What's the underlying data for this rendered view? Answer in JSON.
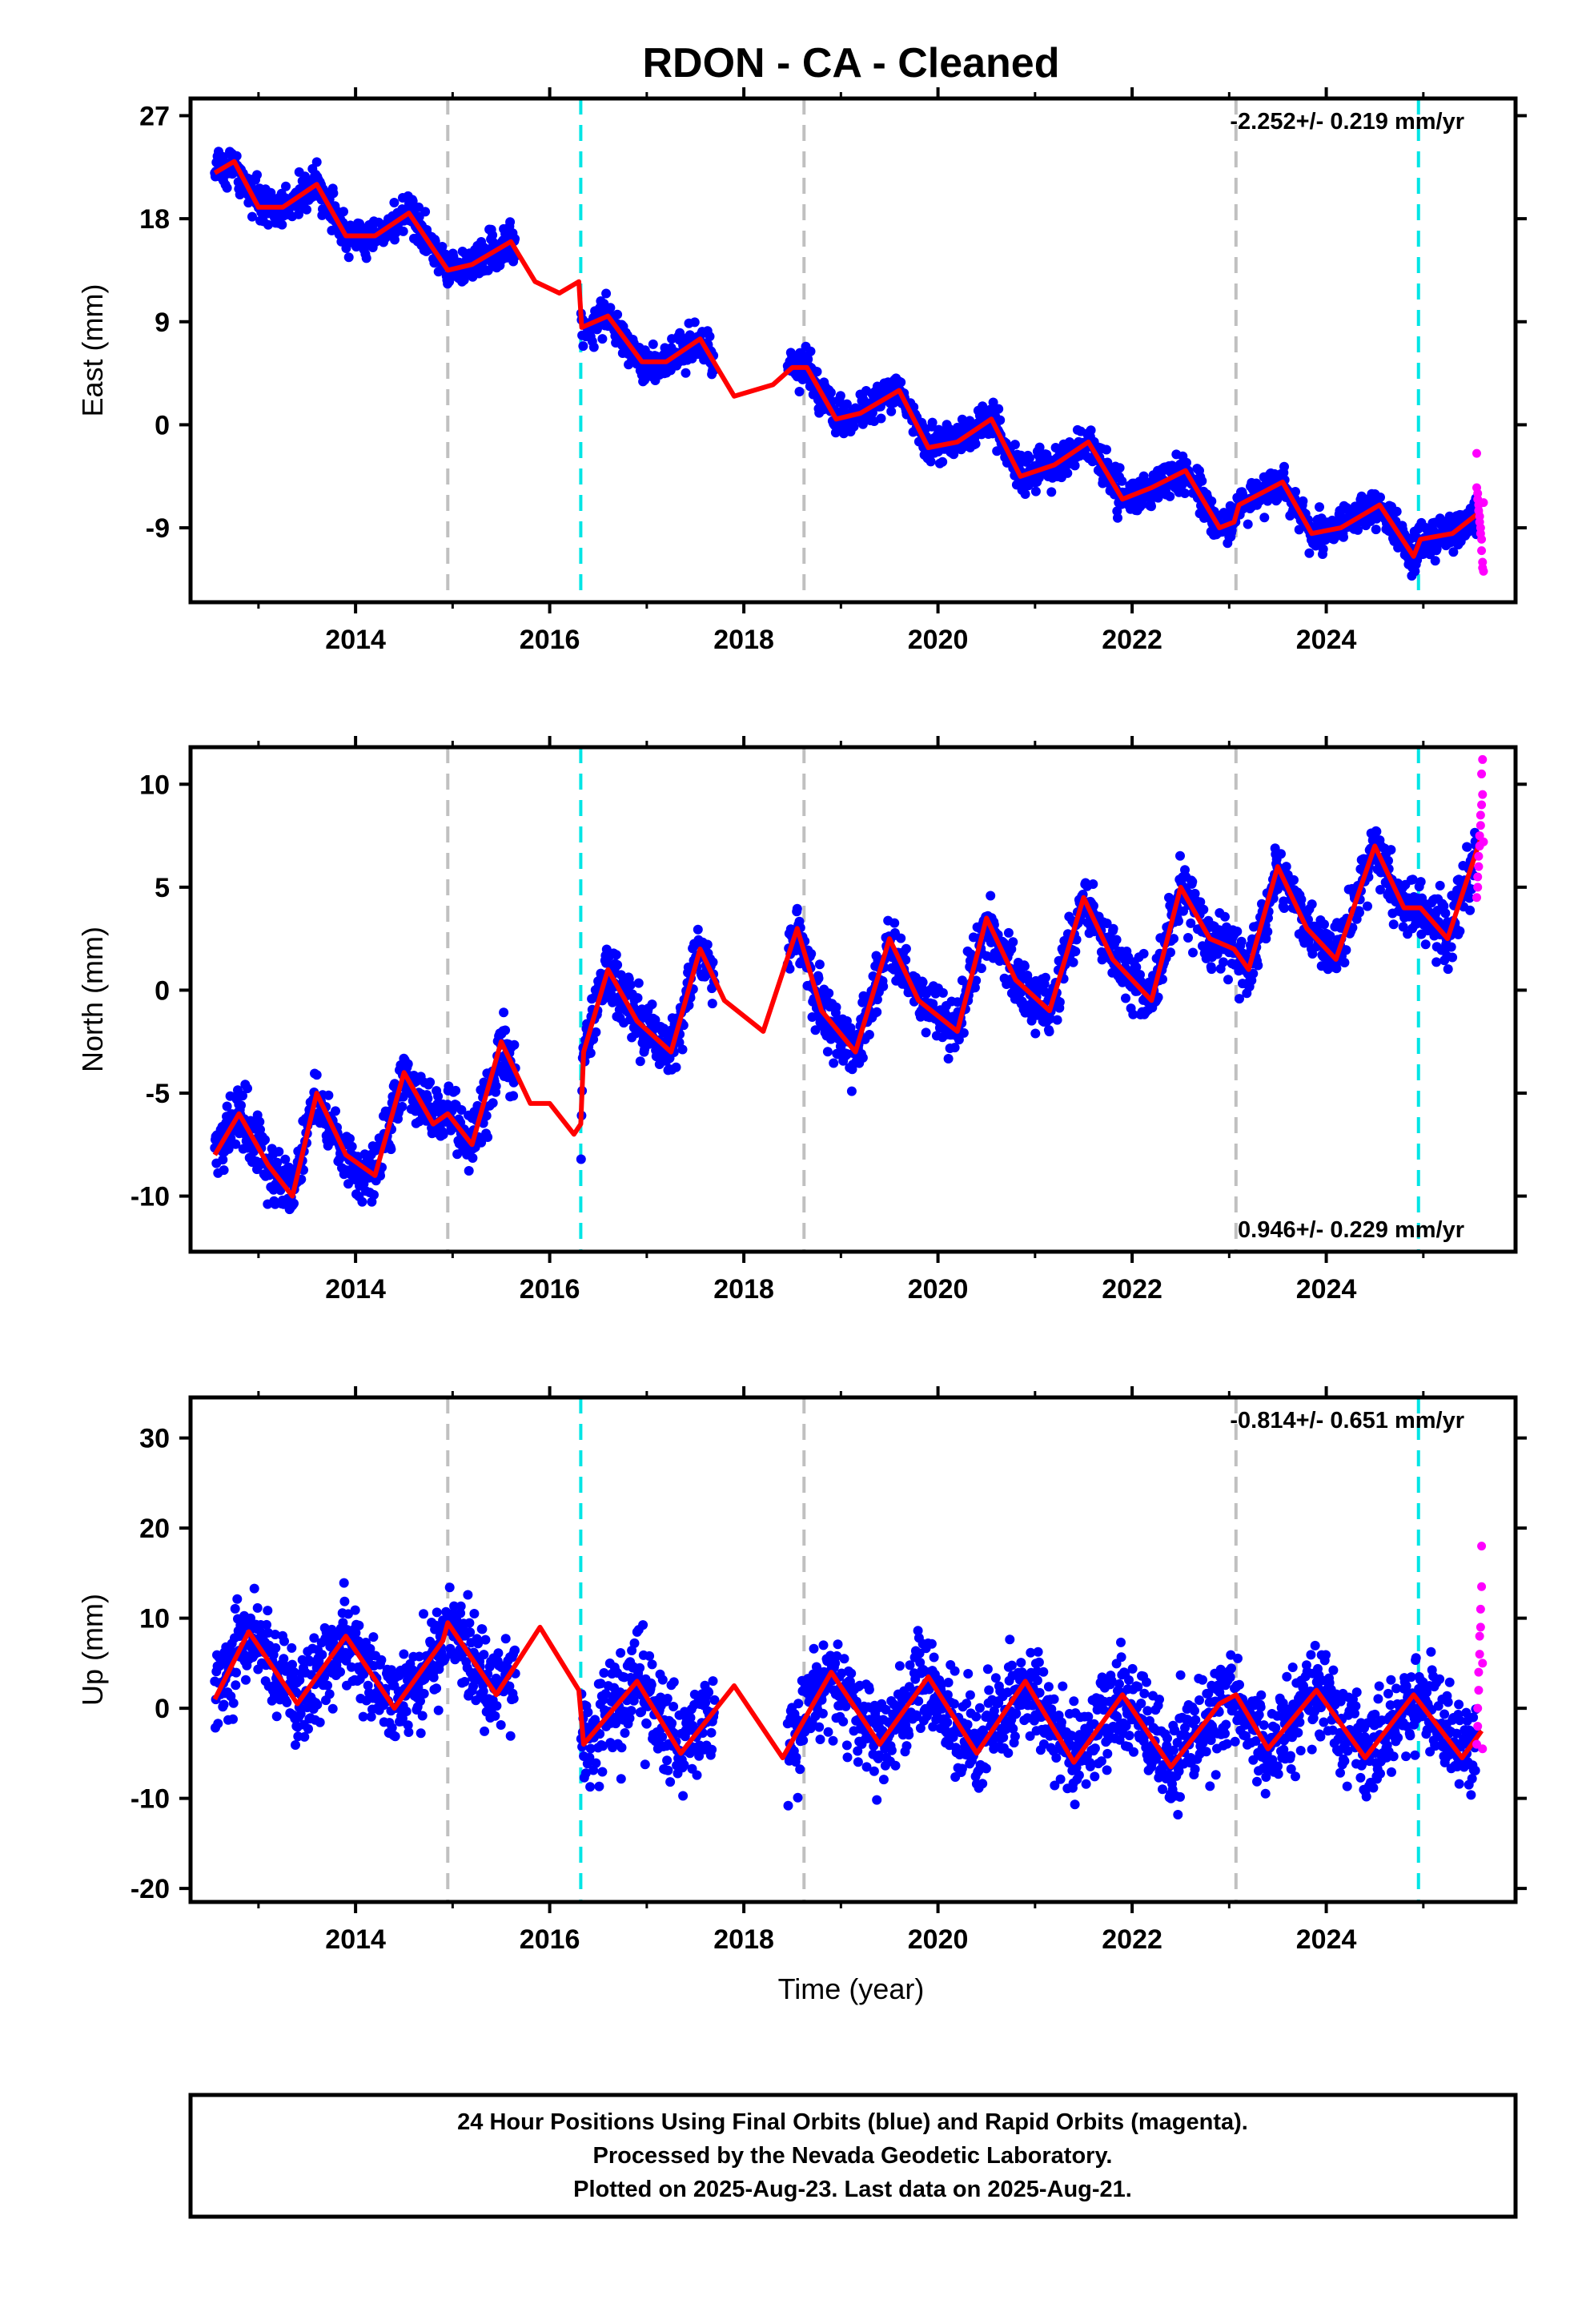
{
  "page": {
    "title": "RDON  - CA - Cleaned",
    "xlabel": "Time (year)"
  },
  "footer": {
    "line1": "24 Hour Positions Using Final Orbits (blue) and Rapid Orbits (magenta).",
    "line2": "Processed by the Nevada Geodetic Laboratory.",
    "line3": "Plotted on 2025-Aug-23. Last data on 2025-Aug-21."
  },
  "colors": {
    "final_orbits": "#0000ff",
    "rapid_orbits": "#ff00ff",
    "model_fit": "#ff0000",
    "equipment_change": "#c0c0c0",
    "earthquake": "#00e5e5"
  },
  "chart_data": [
    {
      "type": "scatter",
      "ylabel": "East (mm)",
      "xlim": [
        2012.3,
        2025.95
      ],
      "ylim": [
        -15.5,
        28.5
      ],
      "yticks": [
        -9,
        0,
        9,
        18,
        27
      ],
      "xticks": [
        2014,
        2016,
        2018,
        2020,
        2022,
        2024
      ],
      "rate_text": "-2.252+/- 0.219 mm/yr",
      "rate_position": "top-right",
      "grey_lines": [
        2014.95,
        2018.62,
        2023.07
      ],
      "cyan_lines": [
        2016.32,
        2024.95
      ],
      "fit_points": [
        [
          2012.55,
          22.0
        ],
        [
          2012.75,
          23.0
        ],
        [
          2013.0,
          19.0
        ],
        [
          2013.25,
          19.0
        ],
        [
          2013.6,
          21.0
        ],
        [
          2013.9,
          16.5
        ],
        [
          2014.2,
          16.5
        ],
        [
          2014.55,
          18.5
        ],
        [
          2014.95,
          13.5
        ],
        [
          2015.2,
          14.0
        ],
        [
          2015.6,
          16.0
        ],
        [
          2015.85,
          12.5
        ],
        [
          2016.1,
          11.5
        ],
        [
          2016.3,
          12.5
        ],
        [
          2016.33,
          8.5
        ],
        [
          2016.6,
          9.5
        ],
        [
          2016.95,
          5.5
        ],
        [
          2017.2,
          5.5
        ],
        [
          2017.55,
          7.5
        ],
        [
          2017.9,
          2.5
        ],
        [
          2018.3,
          3.5
        ],
        [
          2018.5,
          5.0
        ],
        [
          2018.65,
          5.0
        ],
        [
          2018.95,
          0.5
        ],
        [
          2019.2,
          1.0
        ],
        [
          2019.6,
          3.0
        ],
        [
          2019.9,
          -2.0
        ],
        [
          2020.2,
          -1.5
        ],
        [
          2020.55,
          0.5
        ],
        [
          2020.85,
          -4.5
        ],
        [
          2021.2,
          -3.5
        ],
        [
          2021.55,
          -1.5
        ],
        [
          2021.9,
          -6.5
        ],
        [
          2022.2,
          -5.5
        ],
        [
          2022.55,
          -4.0
        ],
        [
          2022.9,
          -9.0
        ],
        [
          2023.05,
          -8.5
        ],
        [
          2023.1,
          -7.0
        ],
        [
          2023.55,
          -5.0
        ],
        [
          2023.85,
          -9.5
        ],
        [
          2024.15,
          -9.0
        ],
        [
          2024.55,
          -7.0
        ],
        [
          2024.9,
          -11.5
        ],
        [
          2024.97,
          -10.0
        ],
        [
          2025.3,
          -9.5
        ],
        [
          2025.6,
          -7.5
        ]
      ],
      "rapid_points": [
        [
          2025.55,
          -2.5
        ],
        [
          2025.55,
          -5.5
        ],
        [
          2025.56,
          -6.0
        ],
        [
          2025.56,
          -6.5
        ],
        [
          2025.57,
          -7.0
        ],
        [
          2025.57,
          -7.5
        ],
        [
          2025.58,
          -8.0
        ],
        [
          2025.58,
          -8.5
        ],
        [
          2025.59,
          -9.0
        ],
        [
          2025.59,
          -9.5
        ],
        [
          2025.6,
          -10.0
        ],
        [
          2025.6,
          -11.0
        ],
        [
          2025.61,
          -12.0
        ],
        [
          2025.61,
          -12.5
        ],
        [
          2025.62,
          -12.8
        ],
        [
          2025.62,
          -6.8
        ]
      ]
    },
    {
      "type": "scatter",
      "ylabel": "North (mm)",
      "xlim": [
        2012.3,
        2025.95
      ],
      "ylim": [
        -12.7,
        11.8
      ],
      "yticks": [
        -10,
        -5,
        0,
        5,
        10
      ],
      "xticks": [
        2014,
        2016,
        2018,
        2020,
        2022,
        2024
      ],
      "rate_text": "0.946+/- 0.229 mm/yr",
      "rate_position": "bottom-right",
      "grey_lines": [
        2014.95,
        2018.62,
        2023.07
      ],
      "cyan_lines": [
        2016.32,
        2024.95
      ],
      "fit_points": [
        [
          2012.55,
          -8.0
        ],
        [
          2012.8,
          -6.0
        ],
        [
          2013.1,
          -8.5
        ],
        [
          2013.35,
          -10.0
        ],
        [
          2013.6,
          -5.0
        ],
        [
          2013.9,
          -8.0
        ],
        [
          2014.2,
          -9.0
        ],
        [
          2014.5,
          -4.0
        ],
        [
          2014.8,
          -6.5
        ],
        [
          2014.95,
          -6.0
        ],
        [
          2015.2,
          -7.5
        ],
        [
          2015.5,
          -2.5
        ],
        [
          2015.8,
          -5.5
        ],
        [
          2016.0,
          -5.5
        ],
        [
          2016.25,
          -7.0
        ],
        [
          2016.32,
          -6.5
        ],
        [
          2016.35,
          -3.0
        ],
        [
          2016.6,
          1.0
        ],
        [
          2016.9,
          -1.5
        ],
        [
          2017.25,
          -3.0
        ],
        [
          2017.55,
          2.0
        ],
        [
          2017.8,
          -0.5
        ],
        [
          2018.2,
          -2.0
        ],
        [
          2018.55,
          3.0
        ],
        [
          2018.8,
          -1.0
        ],
        [
          2019.15,
          -3.0
        ],
        [
          2019.5,
          2.5
        ],
        [
          2019.8,
          -0.5
        ],
        [
          2020.2,
          -2.0
        ],
        [
          2020.5,
          3.5
        ],
        [
          2020.8,
          0.5
        ],
        [
          2021.15,
          -1.0
        ],
        [
          2021.5,
          4.5
        ],
        [
          2021.8,
          1.5
        ],
        [
          2022.2,
          -0.5
        ],
        [
          2022.5,
          5.0
        ],
        [
          2022.8,
          2.5
        ],
        [
          2023.05,
          2.0
        ],
        [
          2023.2,
          1.0
        ],
        [
          2023.5,
          6.0
        ],
        [
          2023.8,
          3.0
        ],
        [
          2024.1,
          1.5
        ],
        [
          2024.5,
          7.0
        ],
        [
          2024.8,
          4.0
        ],
        [
          2024.97,
          4.0
        ],
        [
          2025.25,
          2.5
        ],
        [
          2025.6,
          7.5
        ]
      ],
      "rapid_points": [
        [
          2025.55,
          4.5
        ],
        [
          2025.56,
          5.0
        ],
        [
          2025.56,
          5.5
        ],
        [
          2025.57,
          6.0
        ],
        [
          2025.57,
          6.5
        ],
        [
          2025.58,
          7.0
        ],
        [
          2025.58,
          7.5
        ],
        [
          2025.59,
          8.0
        ],
        [
          2025.59,
          8.5
        ],
        [
          2025.6,
          9.0
        ],
        [
          2025.6,
          10.5
        ],
        [
          2025.61,
          11.2
        ],
        [
          2025.61,
          9.5
        ],
        [
          2025.62,
          7.2
        ]
      ]
    },
    {
      "type": "scatter",
      "ylabel": "Up (mm)",
      "xlim": [
        2012.3,
        2025.95
      ],
      "ylim": [
        -21.5,
        34.5
      ],
      "yticks": [
        -20,
        -10,
        0,
        10,
        20,
        30
      ],
      "xticks": [
        2014,
        2016,
        2018,
        2020,
        2022,
        2024
      ],
      "rate_text": "-0.814+/- 0.651 mm/yr",
      "rate_position": "top-right",
      "grey_lines": [
        2014.95,
        2018.62,
        2023.07
      ],
      "cyan_lines": [
        2016.32,
        2024.95
      ],
      "fit_points": [
        [
          2012.55,
          1.0
        ],
        [
          2012.9,
          8.5
        ],
        [
          2013.4,
          0.5
        ],
        [
          2013.9,
          8.0
        ],
        [
          2014.4,
          0.0
        ],
        [
          2014.9,
          7.5
        ],
        [
          2014.95,
          9.5
        ],
        [
          2015.45,
          1.5
        ],
        [
          2015.9,
          9.0
        ],
        [
          2016.3,
          2.0
        ],
        [
          2016.35,
          -4.0
        ],
        [
          2016.9,
          3.0
        ],
        [
          2017.35,
          -5.0
        ],
        [
          2017.9,
          2.5
        ],
        [
          2018.4,
          -5.5
        ],
        [
          2018.9,
          4.0
        ],
        [
          2019.4,
          -4.0
        ],
        [
          2019.9,
          3.5
        ],
        [
          2020.4,
          -5.0
        ],
        [
          2020.9,
          3.0
        ],
        [
          2021.4,
          -6.0
        ],
        [
          2021.9,
          1.5
        ],
        [
          2022.4,
          -6.5
        ],
        [
          2022.9,
          0.5
        ],
        [
          2023.07,
          1.5
        ],
        [
          2023.4,
          -4.5
        ],
        [
          2023.9,
          2.0
        ],
        [
          2024.4,
          -5.5
        ],
        [
          2024.9,
          1.5
        ],
        [
          2025.4,
          -5.5
        ],
        [
          2025.6,
          -2.5
        ]
      ],
      "rapid_points": [
        [
          2025.55,
          -4.0
        ],
        [
          2025.56,
          -2.0
        ],
        [
          2025.56,
          0.0
        ],
        [
          2025.57,
          2.0
        ],
        [
          2025.57,
          4.0
        ],
        [
          2025.58,
          6.0
        ],
        [
          2025.58,
          8.0
        ],
        [
          2025.59,
          9.0
        ],
        [
          2025.59,
          11.0
        ],
        [
          2025.6,
          13.5
        ],
        [
          2025.6,
          18.0
        ],
        [
          2025.61,
          5.0
        ],
        [
          2025.61,
          -4.5
        ]
      ]
    }
  ]
}
